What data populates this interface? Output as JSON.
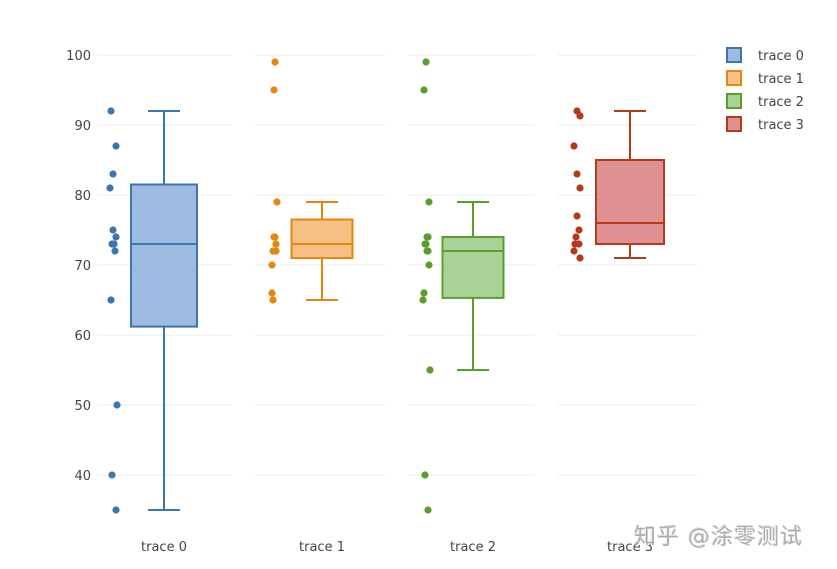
{
  "chart_data": {
    "type": "box",
    "title": "",
    "xlabel": "",
    "ylabel": "",
    "ylim": [
      33,
      102
    ],
    "yticks": [
      40,
      50,
      60,
      70,
      80,
      90,
      100
    ],
    "grid": true,
    "legend_position": "top-right",
    "boxpoints": "all",
    "categories": [
      "trace 0",
      "trace 1",
      "trace 2",
      "trace 3"
    ],
    "series": [
      {
        "name": "trace 0",
        "color": "#3d76af",
        "fill": "#9dbbe0",
        "points": [
          92,
          87,
          83,
          81,
          75,
          74,
          73,
          73,
          72,
          65,
          50,
          40,
          35
        ],
        "stats": {
          "min": 35,
          "q1": 61.2,
          "median": 73,
          "q3": 81.5,
          "max": 92
        }
      },
      {
        "name": "trace 1",
        "color": "#e6860f",
        "fill": "#f5c084",
        "points": [
          99,
          95,
          79,
          74,
          74,
          73,
          72,
          72,
          70,
          66,
          65
        ],
        "stats": {
          "min": 65,
          "q1": 71,
          "median": 73,
          "q3": 76.5,
          "max": 79
        }
      },
      {
        "name": "trace 2",
        "color": "#5a9e2c",
        "fill": "#a9d396",
        "points": [
          99,
          95,
          79,
          74,
          74,
          73,
          73,
          72,
          72,
          70,
          66,
          65,
          55,
          40,
          35
        ],
        "stats": {
          "min": 55,
          "q1": 65.3,
          "median": 72,
          "q3": 74,
          "max": 79
        }
      },
      {
        "name": "trace 3",
        "color": "#b43a1a",
        "fill": "#df9191",
        "points": [
          92,
          91.3,
          87,
          83,
          81,
          77,
          75,
          74,
          73,
          73,
          72,
          71
        ],
        "stats": {
          "min": 71,
          "q1": 73,
          "median": 76,
          "q3": 85,
          "max": 92
        }
      }
    ]
  },
  "legend": {
    "items": [
      {
        "label": "trace 0"
      },
      {
        "label": "trace 1"
      },
      {
        "label": "trace 2"
      },
      {
        "label": "trace 3"
      }
    ]
  },
  "axis": {
    "y_ticks": [
      "100",
      "90",
      "80",
      "70",
      "60",
      "50",
      "40"
    ],
    "x_labels": [
      "trace 0",
      "trace 1",
      "trace 2",
      "trace 3"
    ]
  },
  "watermark": "知乎 @涂零测试"
}
